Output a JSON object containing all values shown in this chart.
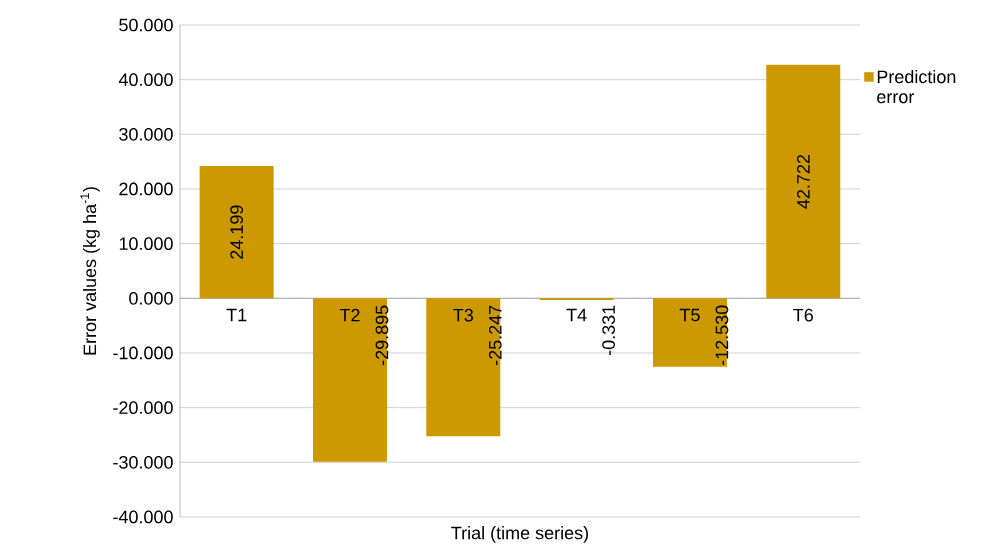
{
  "chart_data": {
    "type": "bar",
    "xlabel": "Trial (time series)",
    "ylabel": "Error values (kg ha$^{-1}$)",
    "categories": [
      "T1",
      "T2",
      "T3",
      "T4",
      "T5",
      "T6"
    ],
    "series": [
      {
        "name": "Prediction error",
        "color": "#cc9900",
        "values": [
          24.199,
          -29.895,
          -25.247,
          -0.331,
          -12.53,
          42.722
        ],
        "value_labels": [
          "24.199",
          "-29.895",
          "-25.247",
          "-0.331",
          "-12.530",
          "42.722"
        ]
      }
    ],
    "ylim": [
      -40,
      50
    ],
    "yticks": [
      {
        "value": -40,
        "label": "-40.000"
      },
      {
        "value": -30,
        "label": "-30.000"
      },
      {
        "value": -20,
        "label": "-20.000"
      },
      {
        "value": -10,
        "label": "-10.000"
      },
      {
        "value": 0,
        "label": "0.000"
      },
      {
        "value": 10,
        "label": "10.000"
      },
      {
        "value": 20,
        "label": "20.000"
      },
      {
        "value": 30,
        "label": "30.000"
      },
      {
        "value": 40,
        "label": "40.000"
      },
      {
        "value": 50,
        "label": "50.000"
      }
    ],
    "grid": "y",
    "legend": "top right"
  }
}
